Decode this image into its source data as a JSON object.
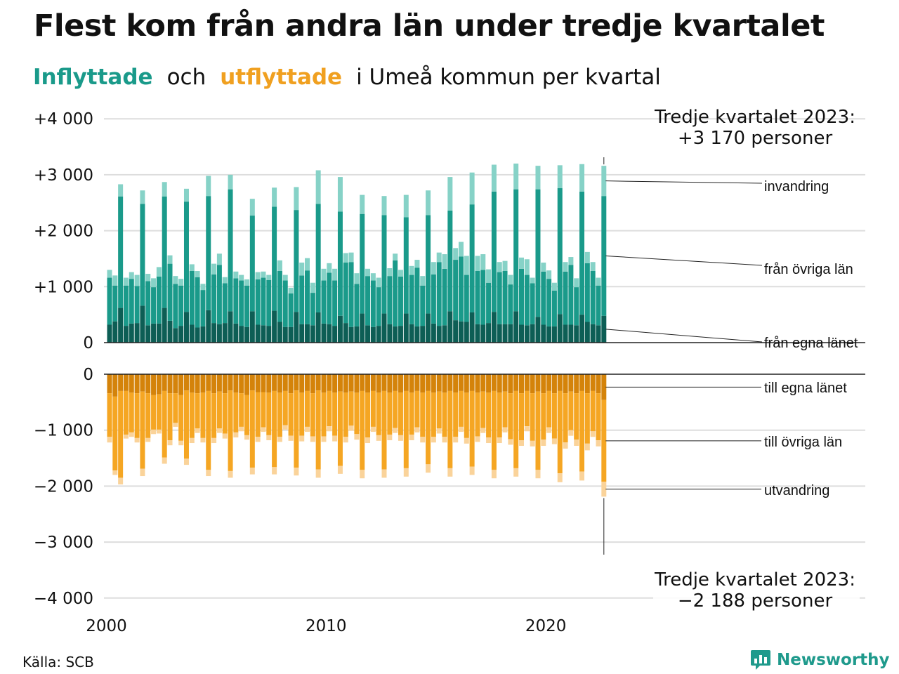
{
  "title": "Flest kom från andra län under tredje kvartalet",
  "subtitle": {
    "inflow_word": "Inflyttade",
    "and_word": "och",
    "outflow_word": "utflyttade",
    "rest": "i Umeå  kommun  per  kvartal"
  },
  "source": "Källa: SCB",
  "brand": "Newsworthy",
  "colors": {
    "in_own": "#0d5e55",
    "in_other": "#1a9a8a",
    "in_imm": "#86d2c7",
    "out_own": "#d4830a",
    "out_other": "#f5a623",
    "out_emi": "#fad39a",
    "grid": "#dddddd",
    "axis": "#222222"
  },
  "chart_data": {
    "type": "bar",
    "stacked": true,
    "period": "kvartal",
    "x_tick_labels": [
      "2000",
      "2010",
      "2020"
    ],
    "top_panel": {
      "y_ticks": [
        0,
        1000,
        2000,
        3000,
        4000
      ],
      "y_tick_labels": [
        "0",
        "+1 000",
        "+2 000",
        "+3 000",
        "+4 000"
      ],
      "ylim": [
        0,
        4000
      ],
      "series": [
        {
          "name": "från egna länet",
          "values": [
            320,
            380,
            620,
            300,
            340,
            350,
            660,
            310,
            340,
            340,
            620,
            390,
            260,
            300,
            550,
            320,
            270,
            290,
            580,
            350,
            330,
            350,
            560,
            340,
            300,
            280,
            560,
            320,
            310,
            300,
            570,
            370,
            280,
            280,
            550,
            330,
            330,
            310,
            540,
            340,
            330,
            300,
            480,
            350,
            280,
            290,
            520,
            310,
            280,
            300,
            520,
            330,
            290,
            300,
            520,
            330,
            290,
            300,
            520,
            340,
            300,
            310,
            560,
            400,
            380,
            370,
            540,
            330,
            320,
            350,
            550,
            330,
            330,
            330,
            560,
            320,
            310,
            330,
            460,
            320,
            290,
            290,
            510,
            320,
            320,
            310,
            500,
            370,
            330,
            310,
            480
          ]
        },
        {
          "name": "från övriga län",
          "values": [
            840,
            640,
            1990,
            720,
            800,
            660,
            1820,
            790,
            650,
            840,
            1990,
            1020,
            790,
            720,
            1970,
            960,
            900,
            650,
            2040,
            870,
            1060,
            710,
            2180,
            810,
            810,
            740,
            1710,
            810,
            850,
            820,
            1860,
            910,
            830,
            600,
            1820,
            870,
            960,
            580,
            1940,
            770,
            920,
            810,
            1860,
            1080,
            1160,
            760,
            1780,
            880,
            830,
            690,
            1760,
            860,
            1180,
            880,
            1720,
            880,
            1050,
            720,
            1760,
            880,
            1140,
            1010,
            1800,
            1080,
            1160,
            840,
            1930,
            950,
            980,
            720,
            2150,
            930,
            950,
            710,
            2180,
            1000,
            900,
            730,
            2280,
            950,
            850,
            640,
            2250,
            950,
            1070,
            680,
            2200,
            1050,
            950,
            710,
            2140
          ]
        },
        {
          "name": "invandring",
          "values": [
            140,
            180,
            220,
            140,
            120,
            200,
            240,
            130,
            160,
            170,
            260,
            150,
            140,
            120,
            230,
            120,
            110,
            110,
            360,
            190,
            200,
            110,
            260,
            120,
            100,
            110,
            300,
            130,
            110,
            90,
            340,
            190,
            100,
            100,
            410,
            230,
            220,
            180,
            600,
            210,
            170,
            210,
            620,
            170,
            170,
            190,
            340,
            130,
            130,
            170,
            340,
            140,
            120,
            120,
            400,
            160,
            140,
            170,
            440,
            220,
            170,
            260,
            600,
            210,
            260,
            340,
            570,
            270,
            280,
            240,
            480,
            180,
            180,
            170,
            460,
            200,
            280,
            100,
            420,
            160,
            150,
            140,
            410,
            170,
            140,
            160,
            490,
            200,
            160,
            140,
            540
          ]
        }
      ],
      "annotation": {
        "label": "Tredje kvartalet 2023:",
        "value": "+3 170 personer"
      }
    },
    "bottom_panel": {
      "y_ticks": [
        0,
        -1000,
        -2000,
        -3000,
        -4000
      ],
      "y_tick_labels": [
        "0",
        "−1 000",
        "−2 000",
        "−3 000",
        "−4 000"
      ],
      "ylim": [
        -4000,
        0
      ],
      "series": [
        {
          "name": "till egna länet",
          "values": [
            -340,
            -400,
            -300,
            -300,
            -330,
            -340,
            -310,
            -340,
            -370,
            -360,
            -300,
            -340,
            -340,
            -370,
            -290,
            -330,
            -340,
            -330,
            -300,
            -340,
            -310,
            -340,
            -290,
            -330,
            -340,
            -370,
            -290,
            -320,
            -320,
            -330,
            -300,
            -330,
            -300,
            -340,
            -290,
            -330,
            -300,
            -340,
            -290,
            -330,
            -300,
            -330,
            -310,
            -330,
            -310,
            -330,
            -300,
            -330,
            -300,
            -330,
            -300,
            -330,
            -300,
            -330,
            -300,
            -330,
            -300,
            -330,
            -300,
            -330,
            -310,
            -330,
            -300,
            -330,
            -300,
            -330,
            -300,
            -330,
            -310,
            -330,
            -300,
            -330,
            -310,
            -340,
            -300,
            -340,
            -300,
            -340,
            -310,
            -340,
            -300,
            -340,
            -300,
            -340,
            -310,
            -340,
            -300,
            -340,
            -300,
            -340,
            -460
          ]
        },
        {
          "name": "till övriga län",
          "values": [
            -780,
            -1320,
            -1550,
            -780,
            -710,
            -800,
            -1380,
            -800,
            -620,
            -630,
            -1190,
            -840,
            -530,
            -820,
            -1220,
            -810,
            -630,
            -810,
            -1410,
            -800,
            -660,
            -720,
            -1440,
            -710,
            -600,
            -720,
            -1380,
            -800,
            -630,
            -760,
            -1360,
            -790,
            -610,
            -760,
            -1380,
            -770,
            -640,
            -770,
            -1410,
            -780,
            -630,
            -770,
            -1330,
            -790,
            -610,
            -740,
            -1410,
            -800,
            -640,
            -760,
            -1400,
            -750,
            -660,
            -760,
            -1380,
            -750,
            -650,
            -790,
            -1310,
            -790,
            -660,
            -790,
            -1380,
            -790,
            -640,
            -810,
            -1350,
            -780,
            -650,
            -800,
            -1410,
            -800,
            -640,
            -820,
            -1380,
            -840,
            -630,
            -850,
            -1400,
            -830,
            -650,
            -810,
            -1470,
            -880,
            -690,
            -830,
            -1440,
            -900,
            -720,
            -840,
            -1460
          ]
        },
        {
          "name": "utvandring",
          "values": [
            -100,
            -80,
            -120,
            -70,
            -80,
            -80,
            -130,
            -70,
            -80,
            -70,
            -110,
            -90,
            -70,
            -80,
            -110,
            -90,
            -80,
            -80,
            -110,
            -90,
            -80,
            -90,
            -120,
            -90,
            -80,
            -80,
            -120,
            -90,
            -80,
            -90,
            -130,
            -90,
            -80,
            -90,
            -140,
            -100,
            -90,
            -100,
            -150,
            -100,
            -90,
            -100,
            -140,
            -100,
            -90,
            -100,
            -150,
            -100,
            -90,
            -100,
            -150,
            -100,
            -90,
            -100,
            -150,
            -100,
            -90,
            -100,
            -150,
            -100,
            -90,
            -100,
            -150,
            -100,
            -90,
            -100,
            -150,
            -100,
            -90,
            -100,
            -150,
            -100,
            -90,
            -100,
            -150,
            -100,
            -90,
            -100,
            -150,
            -110,
            -100,
            -100,
            -160,
            -110,
            -100,
            -110,
            -160,
            -120,
            -100,
            -110,
            -268
          ]
        }
      ],
      "annotation": {
        "label": "Tredje kvartalet 2023:",
        "value": "−2 188 personer"
      }
    }
  }
}
